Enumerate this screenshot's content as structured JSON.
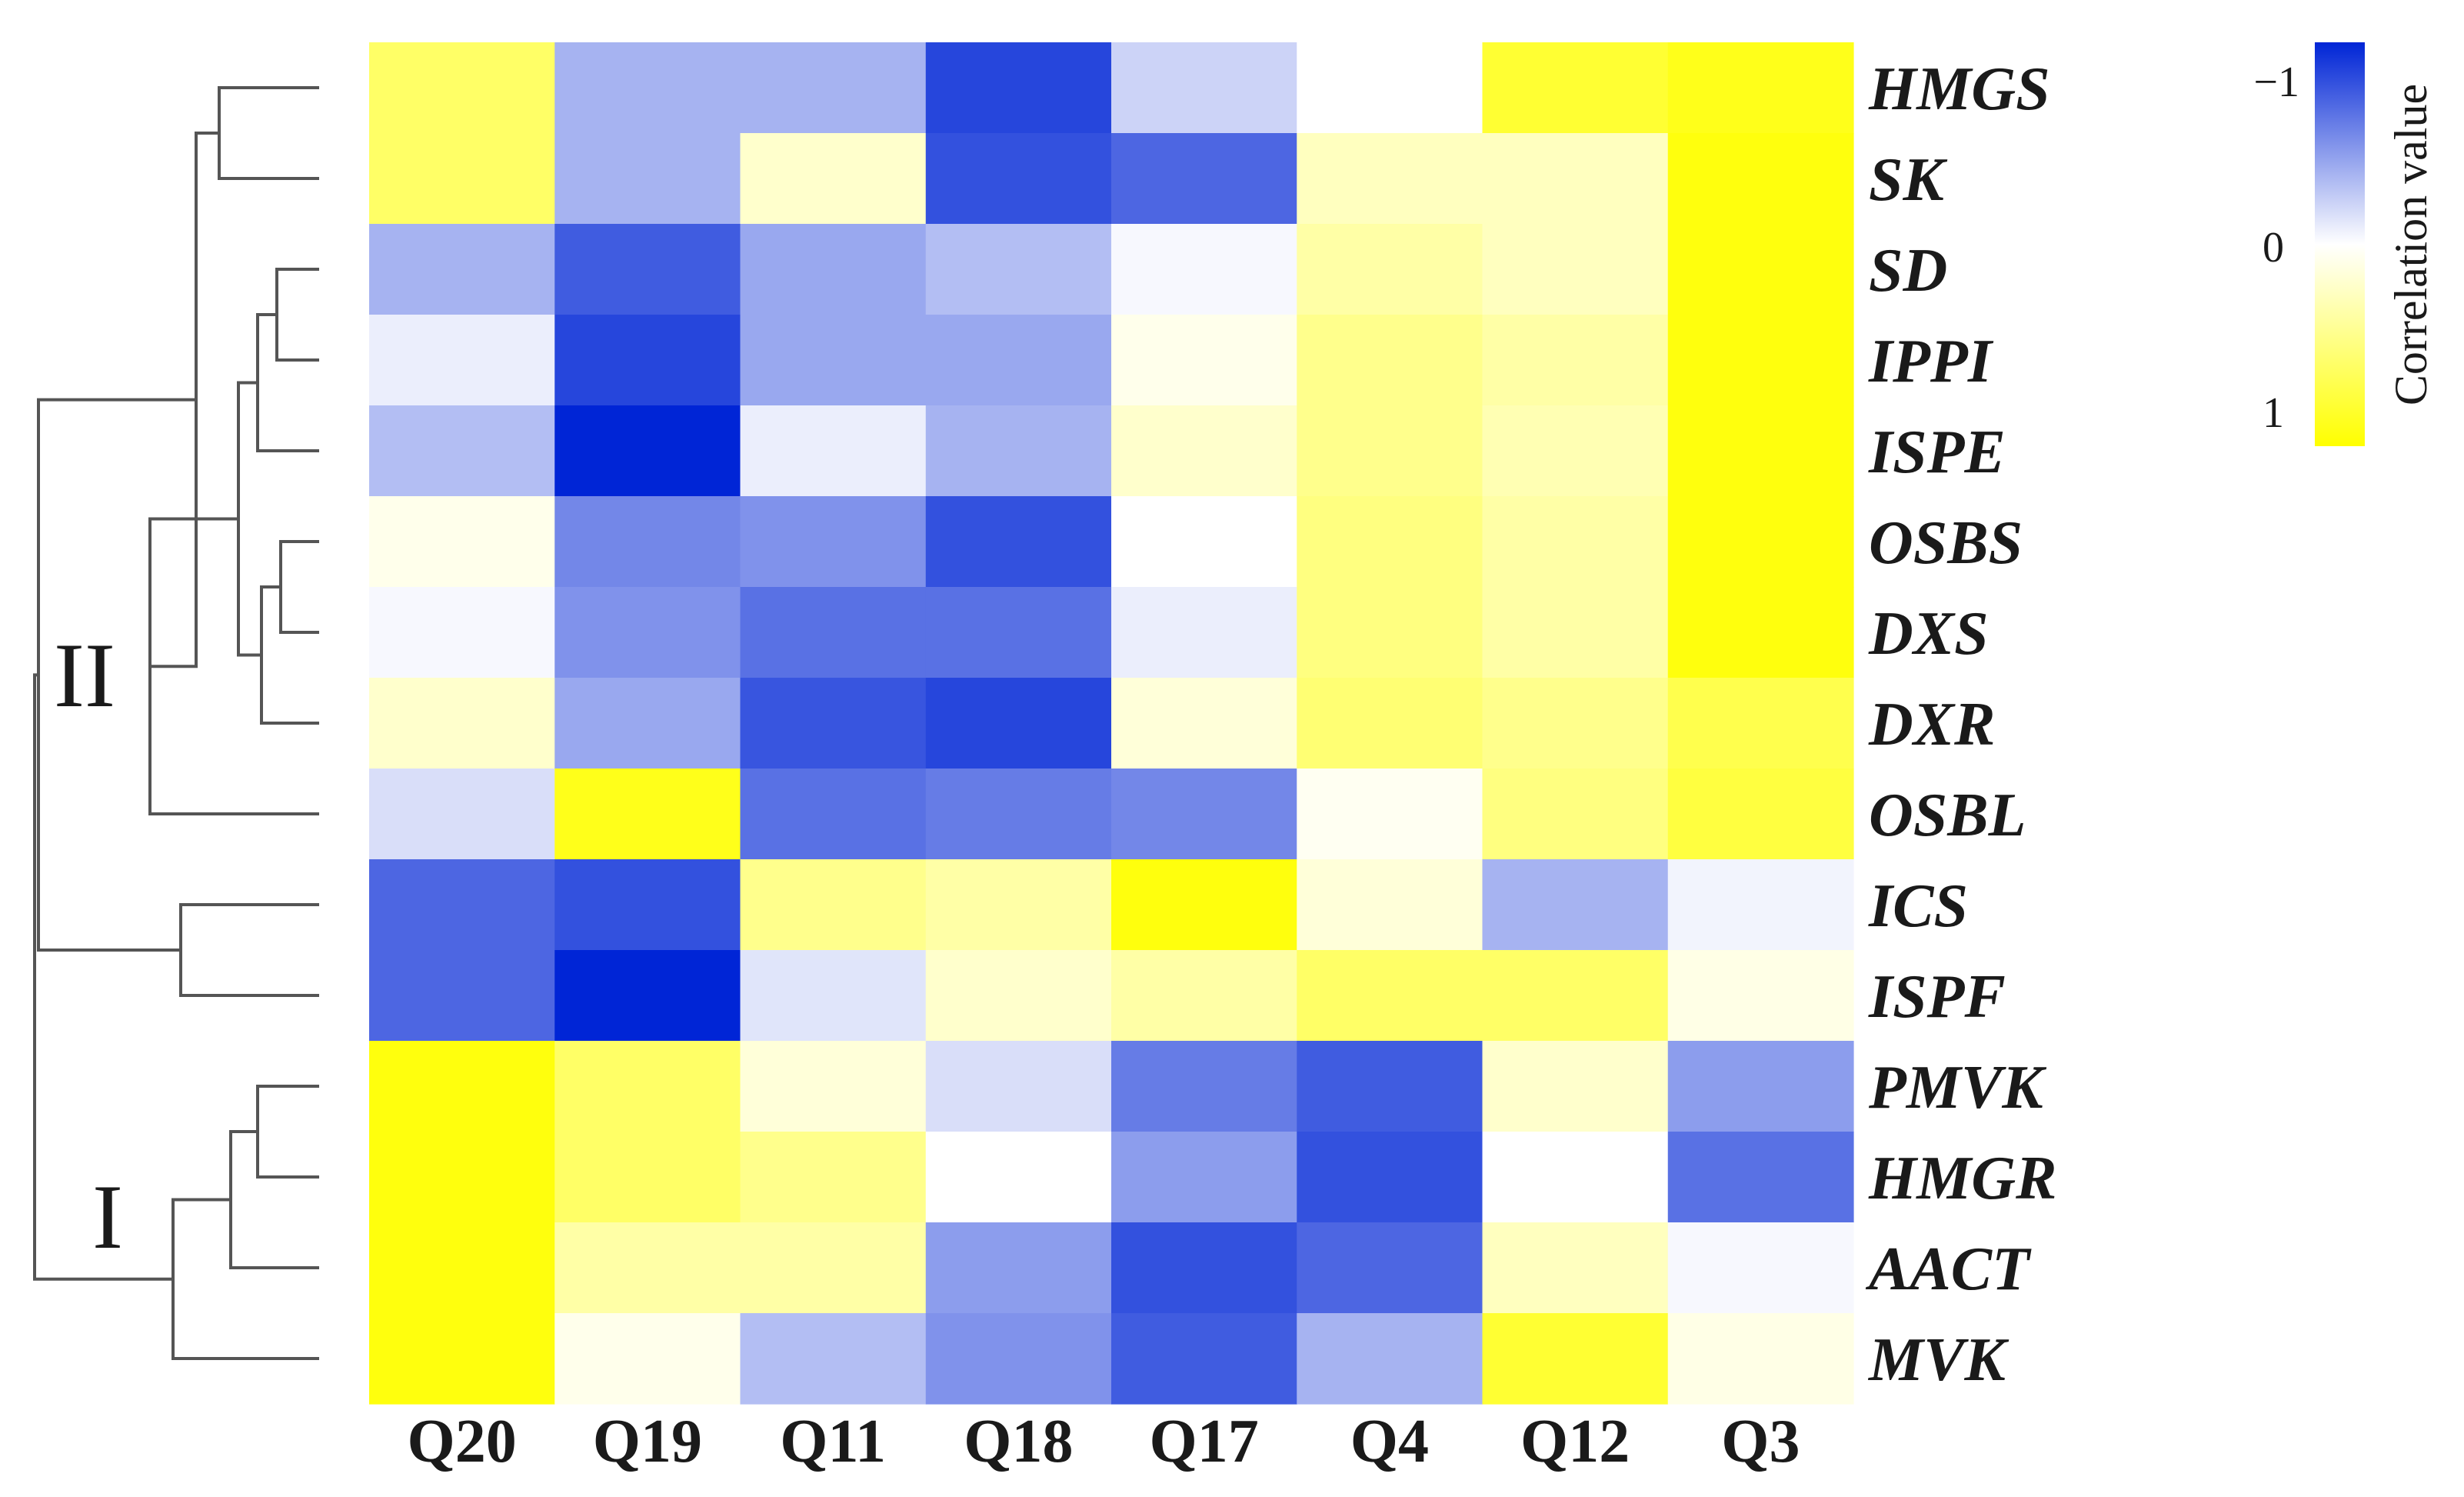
{
  "chart_data": {
    "type": "heatmap",
    "title": "",
    "columns": [
      "Q20",
      "Q19",
      "Q11",
      "Q18",
      "Q17",
      "Q4",
      "Q12",
      "Q3"
    ],
    "rows": [
      "HMGS",
      "SK",
      "SD",
      "IPPI",
      "ISPE",
      "OSBS",
      "DXS",
      "DXR",
      "OSBL",
      "ICS",
      "ISPF",
      "PMVK",
      "HMGR",
      "AACT",
      "MVK"
    ],
    "values": [
      [
        0.6,
        -0.35,
        -0.35,
        -0.85,
        -0.2,
        0.0,
        0.8,
        0.9
      ],
      [
        0.6,
        -0.35,
        0.2,
        -0.8,
        -0.7,
        0.25,
        0.25,
        0.95
      ],
      [
        -0.35,
        -0.75,
        -0.4,
        -0.3,
        -0.03,
        0.35,
        0.25,
        0.95
      ],
      [
        -0.08,
        -0.85,
        -0.4,
        -0.4,
        0.08,
        0.45,
        0.35,
        0.95
      ],
      [
        -0.3,
        -1.0,
        -0.08,
        -0.35,
        0.2,
        0.45,
        0.3,
        0.95
      ],
      [
        0.08,
        -0.55,
        -0.5,
        -0.8,
        0.0,
        0.5,
        0.35,
        0.95
      ],
      [
        -0.03,
        -0.5,
        -0.65,
        -0.65,
        -0.08,
        0.5,
        0.35,
        0.95
      ],
      [
        0.2,
        -0.4,
        -0.78,
        -0.85,
        0.15,
        0.55,
        0.45,
        0.7
      ],
      [
        -0.15,
        0.9,
        -0.65,
        -0.6,
        -0.55,
        0.05,
        0.5,
        0.75
      ],
      [
        -0.7,
        -0.8,
        0.45,
        0.35,
        0.95,
        0.15,
        -0.35,
        -0.05
      ],
      [
        -0.7,
        -1.0,
        -0.12,
        0.2,
        0.35,
        0.6,
        0.6,
        0.1
      ],
      [
        0.95,
        0.6,
        0.15,
        -0.15,
        -0.6,
        -0.75,
        0.2,
        -0.45
      ],
      [
        0.95,
        0.6,
        0.45,
        0.0,
        -0.45,
        -0.8,
        0.0,
        -0.65
      ],
      [
        0.95,
        0.35,
        0.35,
        -0.45,
        -0.8,
        -0.7,
        0.25,
        -0.03
      ],
      [
        0.95,
        0.08,
        -0.3,
        -0.5,
        -0.75,
        -0.35,
        0.8,
        0.1
      ]
    ],
    "color_scale": {
      "title": "Correlation value",
      "ticks": [
        "−1",
        "0",
        "1"
      ],
      "low_color": "#0025d6",
      "mid_color": "#ffffff",
      "high_color": "#ffff00"
    },
    "clusters": [
      "II",
      "I"
    ]
  }
}
